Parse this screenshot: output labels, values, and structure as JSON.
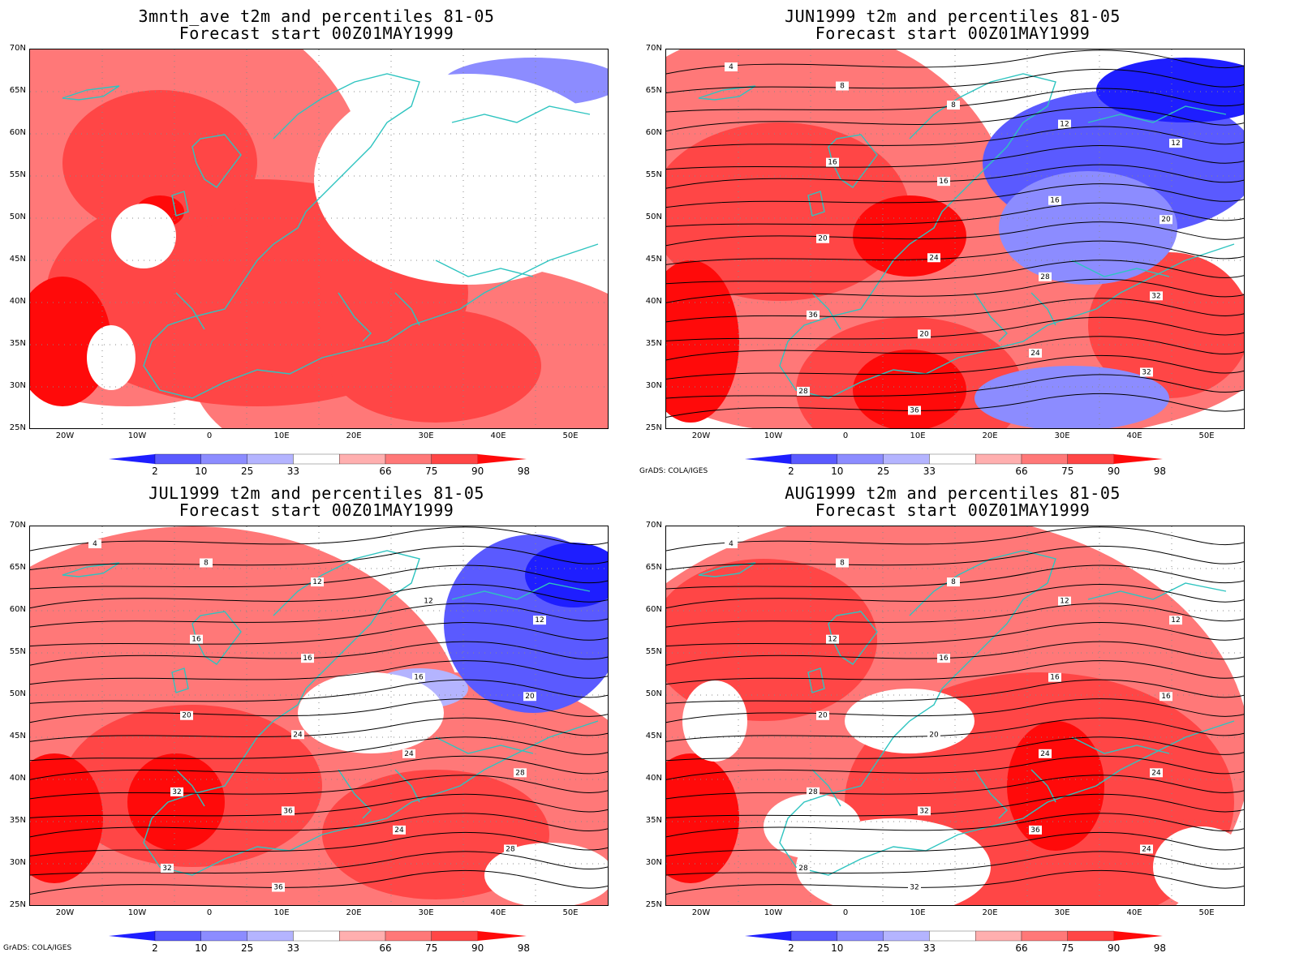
{
  "panels": [
    {
      "line1": "3mnth_ave t2m and percentiles 81-05",
      "line2": "Forecast start 00Z01MAY1999",
      "credit": "",
      "contours": []
    },
    {
      "line1": "JUN1999 t2m and percentiles 81-05",
      "line2": "Forecast start 00Z01MAY1999",
      "credit": "GrADS: COLA/IGES",
      "contours": [
        "4",
        "8",
        "8",
        "12",
        "12",
        "16",
        "16",
        "16",
        "20",
        "20",
        "24",
        "28",
        "32",
        "36",
        "20",
        "24",
        "32",
        "28",
        "36"
      ]
    },
    {
      "line1": "JUL1999 t2m and percentiles 81-05",
      "line2": "Forecast start 00Z01MAY1999",
      "credit": "GrADS: COLA/IGES",
      "contours": [
        "4",
        "8",
        "12",
        "12",
        "12",
        "16",
        "16",
        "16",
        "20",
        "20",
        "24",
        "24",
        "28",
        "32",
        "36",
        "24",
        "28",
        "32",
        "36"
      ]
    },
    {
      "line1": "AUG1999 t2m and percentiles 81-05",
      "line2": "Forecast start 00Z01MAY1999",
      "credit": "",
      "contours": [
        "4",
        "8",
        "8",
        "12",
        "12",
        "12",
        "16",
        "16",
        "16",
        "20",
        "20",
        "24",
        "24",
        "28",
        "32",
        "36",
        "24",
        "28",
        "32"
      ]
    }
  ],
  "y_ticks": [
    "70N",
    "65N",
    "60N",
    "55N",
    "50N",
    "45N",
    "40N",
    "35N",
    "30N",
    "25N"
  ],
  "x_ticks": [
    "20W",
    "10W",
    "0",
    "10E",
    "20E",
    "30E",
    "40E",
    "50E"
  ],
  "colorbar": {
    "labels": [
      "2",
      "10",
      "25",
      "33",
      "66",
      "75",
      "90",
      "98"
    ],
    "colors": [
      "#1e1eff",
      "#5a5aff",
      "#8c8cff",
      "#b4b4ff",
      "#ffffff",
      "#ffafaf",
      "#ff7878",
      "#ff4646",
      "#ff0a0a"
    ]
  },
  "palette": {
    "coast": "#2ec4c0",
    "contour": "#000000"
  }
}
